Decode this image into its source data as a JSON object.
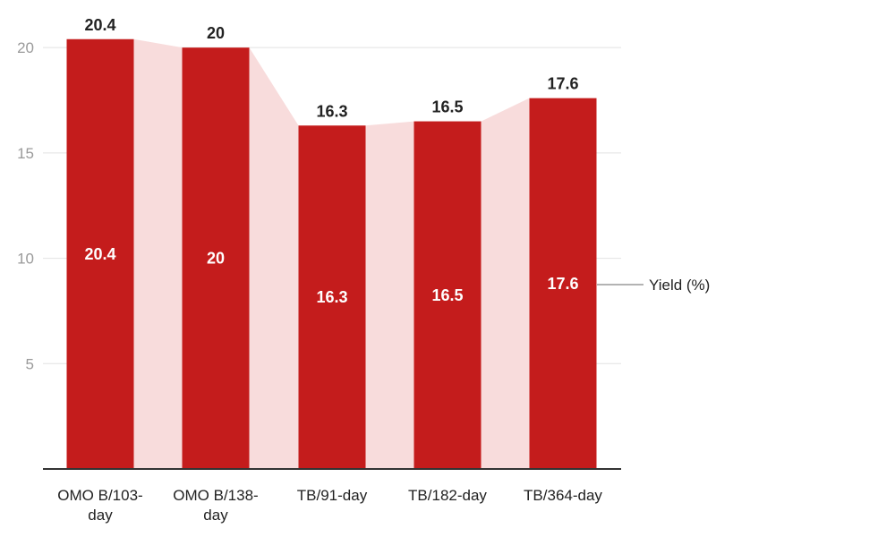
{
  "chart_data": {
    "type": "bar",
    "title": "",
    "xlabel": "",
    "ylabel": "",
    "categories": [
      [
        "OMO B/103-",
        "day"
      ],
      [
        "OMO B/138-",
        "day"
      ],
      [
        "TB/91-day"
      ],
      [
        "TB/182-day"
      ],
      [
        "TB/364-day"
      ]
    ],
    "series": [
      {
        "name": "Yield (%)",
        "values": [
          20.4,
          20,
          16.3,
          16.5,
          17.6
        ]
      }
    ],
    "data_labels": [
      "20.4",
      "20",
      "16.3",
      "16.5",
      "17.6"
    ],
    "yticks": [
      5,
      10,
      15,
      20
    ],
    "ylim": [
      0,
      20.9
    ],
    "grid": true,
    "legend_position": "right",
    "colors": {
      "bar": "#c41c1c",
      "area": "#f8dcdc",
      "grid": "#e2e2e2",
      "axis": "#333333",
      "legend_line": "#9a9a9a"
    }
  }
}
